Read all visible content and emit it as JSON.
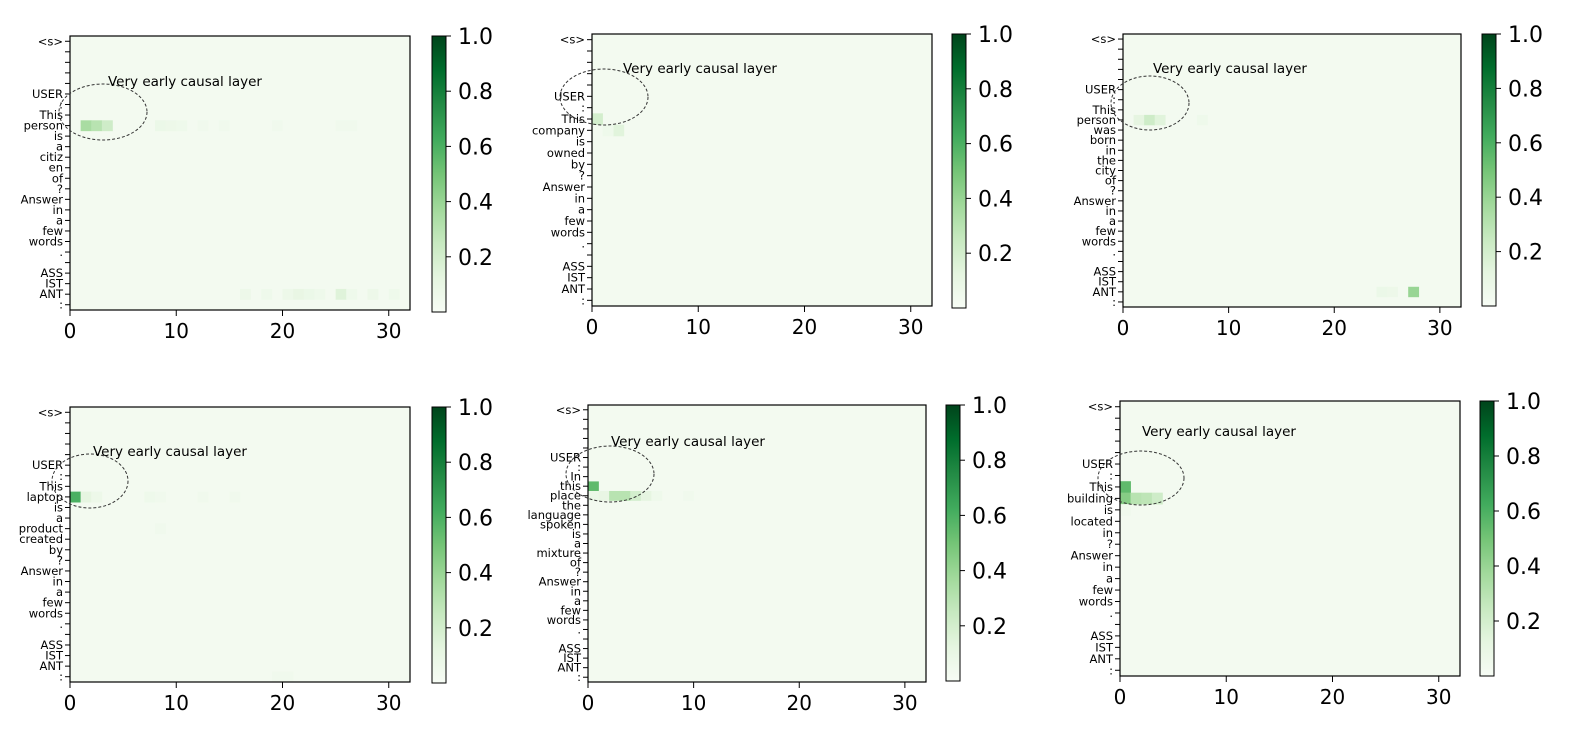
{
  "figure": {
    "title": ""
  },
  "colormap": {
    "name": "Greens",
    "low": "#f7fcf5",
    "high": "#00441b"
  },
  "chart_data": [
    {
      "type": "heatmap",
      "annotation": "Very early causal layer",
      "y_tokens": [
        "<s>",
        "",
        "",
        "",
        "",
        "USER",
        ":",
        "This",
        "person",
        "is",
        "a",
        "citiz",
        "en",
        "of",
        "?",
        "Answer",
        "in",
        "a",
        "few",
        "words",
        ".",
        "",
        "ASS",
        "IST",
        "ANT",
        ":"
      ],
      "x_range": [
        0,
        32
      ],
      "x_ticks": [
        0,
        10,
        20,
        30
      ],
      "colorbar_ticks": [
        0.2,
        0.4,
        0.6,
        0.8,
        1.0
      ],
      "colorbar_tick_labels": [
        "0.2",
        "0.4",
        "0.6",
        "0.8",
        "1.0"
      ],
      "background_value": 0.03,
      "cells": [
        [
          8,
          1,
          0.35
        ],
        [
          8,
          2,
          0.3
        ],
        [
          8,
          3,
          0.22
        ],
        [
          8,
          8,
          0.08
        ],
        [
          8,
          9,
          0.07
        ],
        [
          8,
          10,
          0.06
        ],
        [
          8,
          12,
          0.05
        ],
        [
          8,
          14,
          0.05
        ],
        [
          8,
          19,
          0.05
        ],
        [
          8,
          25,
          0.05
        ],
        [
          8,
          26,
          0.05
        ],
        [
          24,
          16,
          0.07
        ],
        [
          24,
          18,
          0.06
        ],
        [
          24,
          20,
          0.07
        ],
        [
          24,
          21,
          0.1
        ],
        [
          24,
          22,
          0.08
        ],
        [
          24,
          23,
          0.06
        ],
        [
          24,
          25,
          0.15
        ],
        [
          24,
          26,
          0.06
        ],
        [
          24,
          28,
          0.07
        ],
        [
          24,
          30,
          0.06
        ]
      ]
    },
    {
      "type": "heatmap",
      "annotation": "Very early causal layer",
      "y_tokens": [
        "<s>",
        "",
        "",
        "",
        "",
        "USER",
        ":",
        "This",
        "company",
        "is",
        "owned",
        "by",
        "?",
        "Answer",
        "in",
        "a",
        "few",
        "words",
        ".",
        "",
        "ASS",
        "IST",
        "ANT",
        ":"
      ],
      "x_range": [
        0,
        32
      ],
      "x_ticks": [
        0,
        10,
        20,
        30
      ],
      "colorbar_ticks": [
        0.2,
        0.4,
        0.6,
        0.8,
        1.0
      ],
      "colorbar_tick_labels": [
        "0.2",
        "0.4",
        "0.6",
        "0.8",
        "1.0"
      ],
      "background_value": 0.03,
      "cells": [
        [
          7,
          0,
          0.2
        ],
        [
          8,
          2,
          0.14
        ],
        [
          8,
          1,
          0.06
        ]
      ]
    },
    {
      "type": "heatmap",
      "annotation": "Very early causal layer",
      "y_tokens": [
        "<s>",
        "",
        "",
        "",
        "",
        "USER",
        ":",
        "This",
        "person",
        "was",
        "born",
        "in",
        "the",
        "city",
        "of",
        "?",
        "Answer",
        "in",
        "a",
        "few",
        "words",
        ".",
        "",
        "ASS",
        "IST",
        "ANT",
        ":"
      ],
      "x_range": [
        0,
        32
      ],
      "x_ticks": [
        0,
        10,
        20,
        30
      ],
      "colorbar_ticks": [
        0.2,
        0.4,
        0.6,
        0.8,
        1.0
      ],
      "colorbar_tick_labels": [
        "0.2",
        "0.4",
        "0.6",
        "0.8",
        "1.0"
      ],
      "background_value": 0.03,
      "cells": [
        [
          8,
          1,
          0.12
        ],
        [
          8,
          2,
          0.22
        ],
        [
          8,
          3,
          0.14
        ],
        [
          8,
          7,
          0.06
        ],
        [
          25,
          24,
          0.08
        ],
        [
          25,
          25,
          0.07
        ],
        [
          25,
          27,
          0.4
        ]
      ]
    },
    {
      "type": "heatmap",
      "annotation": "Very early causal layer",
      "y_tokens": [
        "<s>",
        "",
        "",
        "",
        "",
        "USER",
        ":",
        "This",
        "laptop",
        "is",
        "a",
        "product",
        "created",
        "by",
        "?",
        "Answer",
        "in",
        "a",
        "few",
        "words",
        ".",
        "",
        "ASS",
        "IST",
        "ANT",
        ":"
      ],
      "x_range": [
        0,
        32
      ],
      "x_ticks": [
        0,
        10,
        20,
        30
      ],
      "colorbar_ticks": [
        0.2,
        0.4,
        0.6,
        0.8,
        1.0
      ],
      "colorbar_tick_labels": [
        "0.2",
        "0.4",
        "0.6",
        "0.8",
        "1.0"
      ],
      "background_value": 0.03,
      "cells": [
        [
          8,
          0,
          0.6
        ],
        [
          8,
          1,
          0.12
        ],
        [
          8,
          2,
          0.07
        ],
        [
          8,
          7,
          0.06
        ],
        [
          8,
          8,
          0.05
        ],
        [
          8,
          12,
          0.05
        ],
        [
          8,
          15,
          0.05
        ],
        [
          11,
          8,
          0.05
        ],
        [
          25,
          19,
          0.05
        ],
        [
          25,
          20,
          0.05
        ]
      ]
    },
    {
      "type": "heatmap",
      "annotation": "Very early causal layer",
      "y_tokens": [
        "<s>",
        "",
        "",
        "",
        "",
        "USER",
        ":",
        "In",
        "this",
        "place",
        "the",
        "language",
        "spoken",
        "is",
        "a",
        "mixture",
        "of",
        "?",
        "Answer",
        "in",
        "a",
        "few",
        "words",
        ".",
        "",
        "ASS",
        "IST",
        "ANT",
        ":"
      ],
      "x_range": [
        0,
        32
      ],
      "x_ticks": [
        0,
        10,
        20,
        30
      ],
      "colorbar_ticks": [
        0.2,
        0.4,
        0.6,
        0.8,
        1.0
      ],
      "colorbar_tick_labels": [
        "0.2",
        "0.4",
        "0.6",
        "0.8",
        "1.0"
      ],
      "background_value": 0.03,
      "cells": [
        [
          8,
          0,
          0.55
        ],
        [
          9,
          0,
          0.08
        ],
        [
          9,
          1,
          0.1
        ],
        [
          9,
          2,
          0.3
        ],
        [
          9,
          3,
          0.3
        ],
        [
          9,
          4,
          0.2
        ],
        [
          9,
          5,
          0.12
        ],
        [
          9,
          6,
          0.06
        ],
        [
          9,
          9,
          0.05
        ]
      ]
    },
    {
      "type": "heatmap",
      "annotation": "Very early causal layer",
      "y_tokens": [
        "<s>",
        "",
        "",
        "",
        "",
        "USER",
        ":",
        "This",
        "building",
        "is",
        "located",
        "in",
        "?",
        "Answer",
        "in",
        "a",
        "few",
        "words",
        ".",
        "",
        "ASS",
        "IST",
        "ANT",
        ":"
      ],
      "x_range": [
        0,
        32
      ],
      "x_ticks": [
        0,
        10,
        20,
        30
      ],
      "colorbar_ticks": [
        0.2,
        0.4,
        0.6,
        0.8,
        1.0
      ],
      "colorbar_tick_labels": [
        "0.2",
        "0.4",
        "0.6",
        "0.8",
        "1.0"
      ],
      "background_value": 0.03,
      "cells": [
        [
          7,
          0,
          0.55
        ],
        [
          8,
          0,
          0.45
        ],
        [
          8,
          1,
          0.3
        ],
        [
          8,
          2,
          0.28
        ],
        [
          8,
          3,
          0.22
        ],
        [
          9,
          0,
          0.05
        ]
      ]
    }
  ]
}
